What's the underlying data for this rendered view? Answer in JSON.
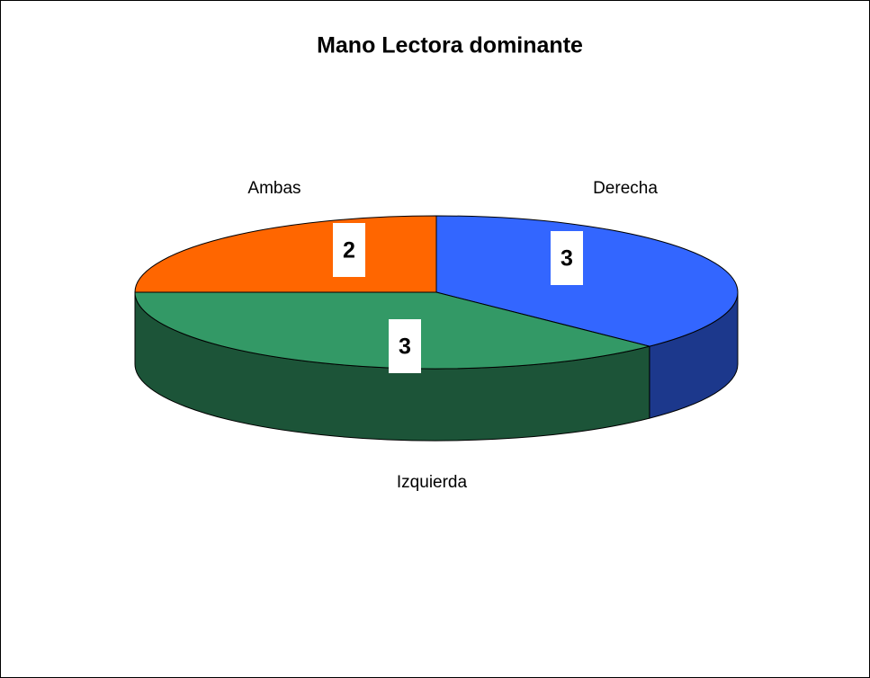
{
  "chart_data": {
    "type": "pie3d",
    "title": "Mano Lectora dominante",
    "categories": [
      "Derecha",
      "Izquierda",
      "Ambas"
    ],
    "values": [
      3,
      3,
      2
    ],
    "colors": [
      "#3366ff",
      "#339966",
      "#ff6600"
    ]
  }
}
